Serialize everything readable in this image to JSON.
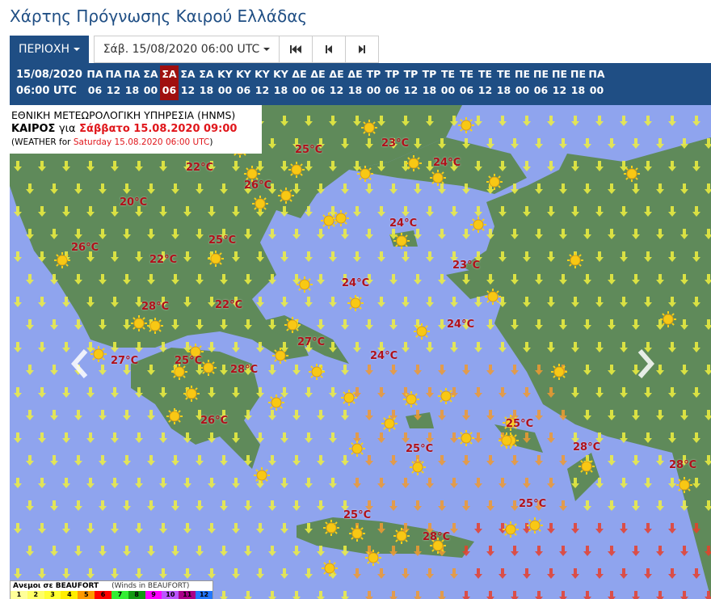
{
  "page_title": "Χάρτης Πρόγνωσης Καιρού Ελλάδας",
  "toolbar": {
    "region_label": "ΠΕΡΙΟΧΗ",
    "datetime_label": "Σάβ. 15/08/2020 06:00 UTC",
    "first_icon": "skip-to-start-icon",
    "prev_icon": "step-back-icon",
    "next_icon": "step-forward-icon"
  },
  "timeline": {
    "date": "15/08/2020",
    "time": "06:00 UTC",
    "active_index": 4,
    "slots": [
      {
        "d": "ΠΑ",
        "h": "06"
      },
      {
        "d": "ΠΑ",
        "h": "12"
      },
      {
        "d": "ΠΑ",
        "h": "18"
      },
      {
        "d": "ΣΑ",
        "h": "00"
      },
      {
        "d": "ΣΑ",
        "h": "06"
      },
      {
        "d": "ΣΑ",
        "h": "12"
      },
      {
        "d": "ΣΑ",
        "h": "18"
      },
      {
        "d": "ΚΥ",
        "h": "00"
      },
      {
        "d": "ΚΥ",
        "h": "06"
      },
      {
        "d": "ΚΥ",
        "h": "12"
      },
      {
        "d": "ΚΥ",
        "h": "18"
      },
      {
        "d": "ΔΕ",
        "h": "00"
      },
      {
        "d": "ΔΕ",
        "h": "06"
      },
      {
        "d": "ΔΕ",
        "h": "12"
      },
      {
        "d": "ΔΕ",
        "h": "18"
      },
      {
        "d": "ΤΡ",
        "h": "00"
      },
      {
        "d": "ΤΡ",
        "h": "06"
      },
      {
        "d": "ΤΡ",
        "h": "12"
      },
      {
        "d": "ΤΡ",
        "h": "18"
      },
      {
        "d": "ΤΕ",
        "h": "00"
      },
      {
        "d": "ΤΕ",
        "h": "06"
      },
      {
        "d": "ΤΕ",
        "h": "12"
      },
      {
        "d": "ΤΕ",
        "h": "18"
      },
      {
        "d": "ΠΕ",
        "h": "00"
      },
      {
        "d": "ΠΕ",
        "h": "06"
      },
      {
        "d": "ΠΕ",
        "h": "12"
      },
      {
        "d": "ΠΕ",
        "h": "18"
      },
      {
        "d": "ΠΑ",
        "h": "00"
      }
    ]
  },
  "info": {
    "agency": "ΕΘΝΙΚΗ ΜΕΤΕΩΡΟΛΟΓΙΚΗ ΥΠΗΡΕΣΙΑ (HNMS)",
    "weather_label": "ΚΑΙΡΟΣ",
    "for_label": "για",
    "local_date": "Σάββατο 15.08.2020 09:00",
    "en_prefix": "(WEATHER for",
    "en_date": "Saturday 15.08.2020 06:00 UTC",
    "en_suffix": ")"
  },
  "temperatures": [
    "25°C",
    "23°C",
    "22°C",
    "24°C",
    "26°C",
    "20°C",
    "24°C",
    "26°C",
    "25°C",
    "22°C",
    "23°C",
    "24°C",
    "28°C",
    "22°C",
    "24°C",
    "27°C",
    "24°C",
    "27°C",
    "25°C",
    "28°C",
    "26°C",
    "25°C",
    "25°C",
    "28°C",
    "28°C",
    "25°C",
    "25°C",
    "28°C"
  ],
  "colors": {
    "sea": "#8fa4ee",
    "land": "#5f8a5a",
    "header": "#1f4e84",
    "active_slot": "#a0100f",
    "temp_text": "#b0101a"
  },
  "legend": {
    "title": "Ανεμοι σε BEAUFORT",
    "subtitle": "(Winds in BEAUFORT)",
    "levels": [
      {
        "v": "1",
        "c": "#ffff99"
      },
      {
        "v": "2",
        "c": "#ffff66"
      },
      {
        "v": "3",
        "c": "#ffff33"
      },
      {
        "v": "4",
        "c": "#ffee00"
      },
      {
        "v": "5",
        "c": "#ff9900"
      },
      {
        "v": "6",
        "c": "#ff0000"
      },
      {
        "v": "7",
        "c": "#33ee33"
      },
      {
        "v": "8",
        "c": "#119911"
      },
      {
        "v": "9",
        "c": "#ff00ff"
      },
      {
        "v": "10",
        "c": "#bb55ff"
      },
      {
        "v": "11",
        "c": "#aa0088"
      },
      {
        "v": "12",
        "c": "#2277ff"
      }
    ]
  },
  "nav": {
    "prev_icon": "chevron-left-icon",
    "next_icon": "chevron-right-icon"
  }
}
